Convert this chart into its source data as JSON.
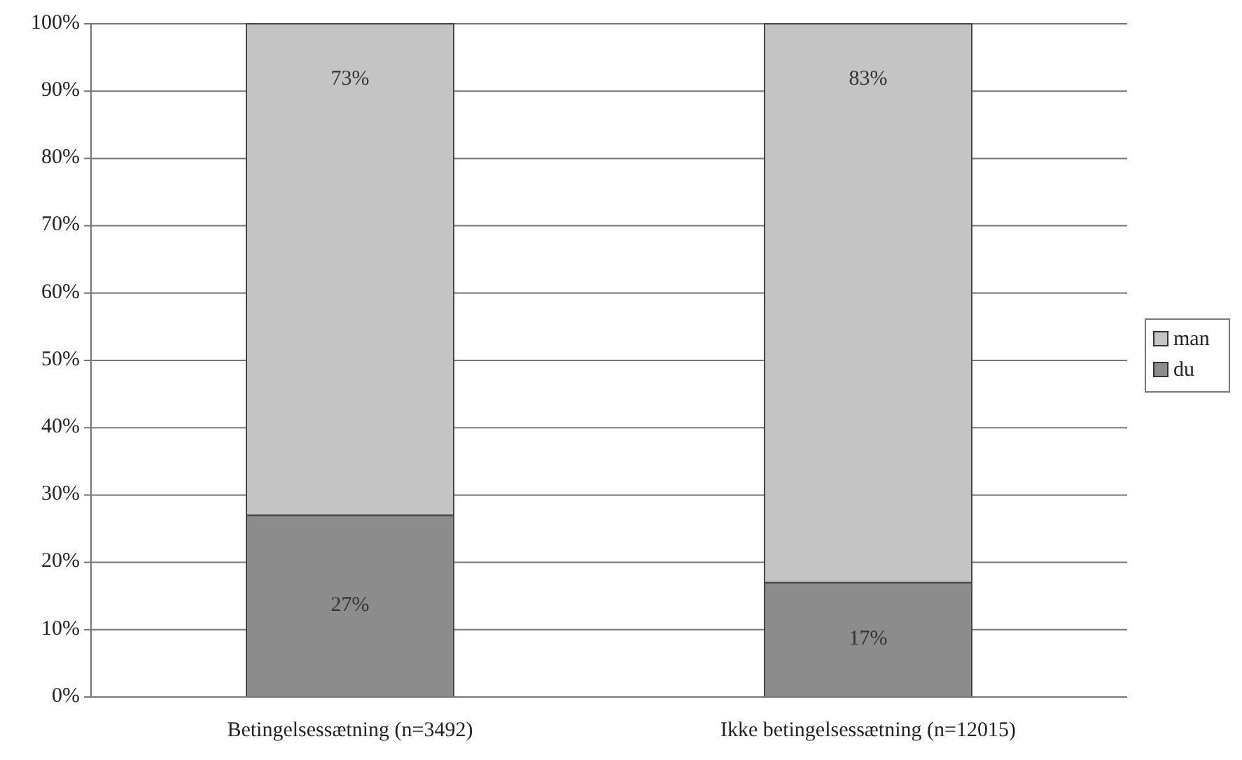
{
  "chart_data": {
    "type": "bar",
    "stacked": true,
    "categories": [
      "Betingelsessætning (n=3492)",
      "Ikke betingelsessætning (n=12015)"
    ],
    "series": [
      {
        "name": "du",
        "color": "#8c8c8c",
        "values": [
          27,
          17
        ],
        "value_labels": [
          "27%",
          "17%"
        ]
      },
      {
        "name": "man",
        "color": "#c4c4c4",
        "values": [
          73,
          83
        ],
        "value_labels": [
          "73%",
          "83%"
        ]
      }
    ],
    "ylim": [
      0,
      100
    ],
    "yticks": [
      {
        "value": 0,
        "label": "0%"
      },
      {
        "value": 10,
        "label": "10%"
      },
      {
        "value": 20,
        "label": "20%"
      },
      {
        "value": 30,
        "label": "30%"
      },
      {
        "value": 40,
        "label": "40%"
      },
      {
        "value": 50,
        "label": "50%"
      },
      {
        "value": 60,
        "label": "60%"
      },
      {
        "value": 70,
        "label": "70%"
      },
      {
        "value": 80,
        "label": "80%"
      },
      {
        "value": 90,
        "label": "90%"
      },
      {
        "value": 100,
        "label": "100%"
      }
    ],
    "grid": "y",
    "legend": "right"
  }
}
